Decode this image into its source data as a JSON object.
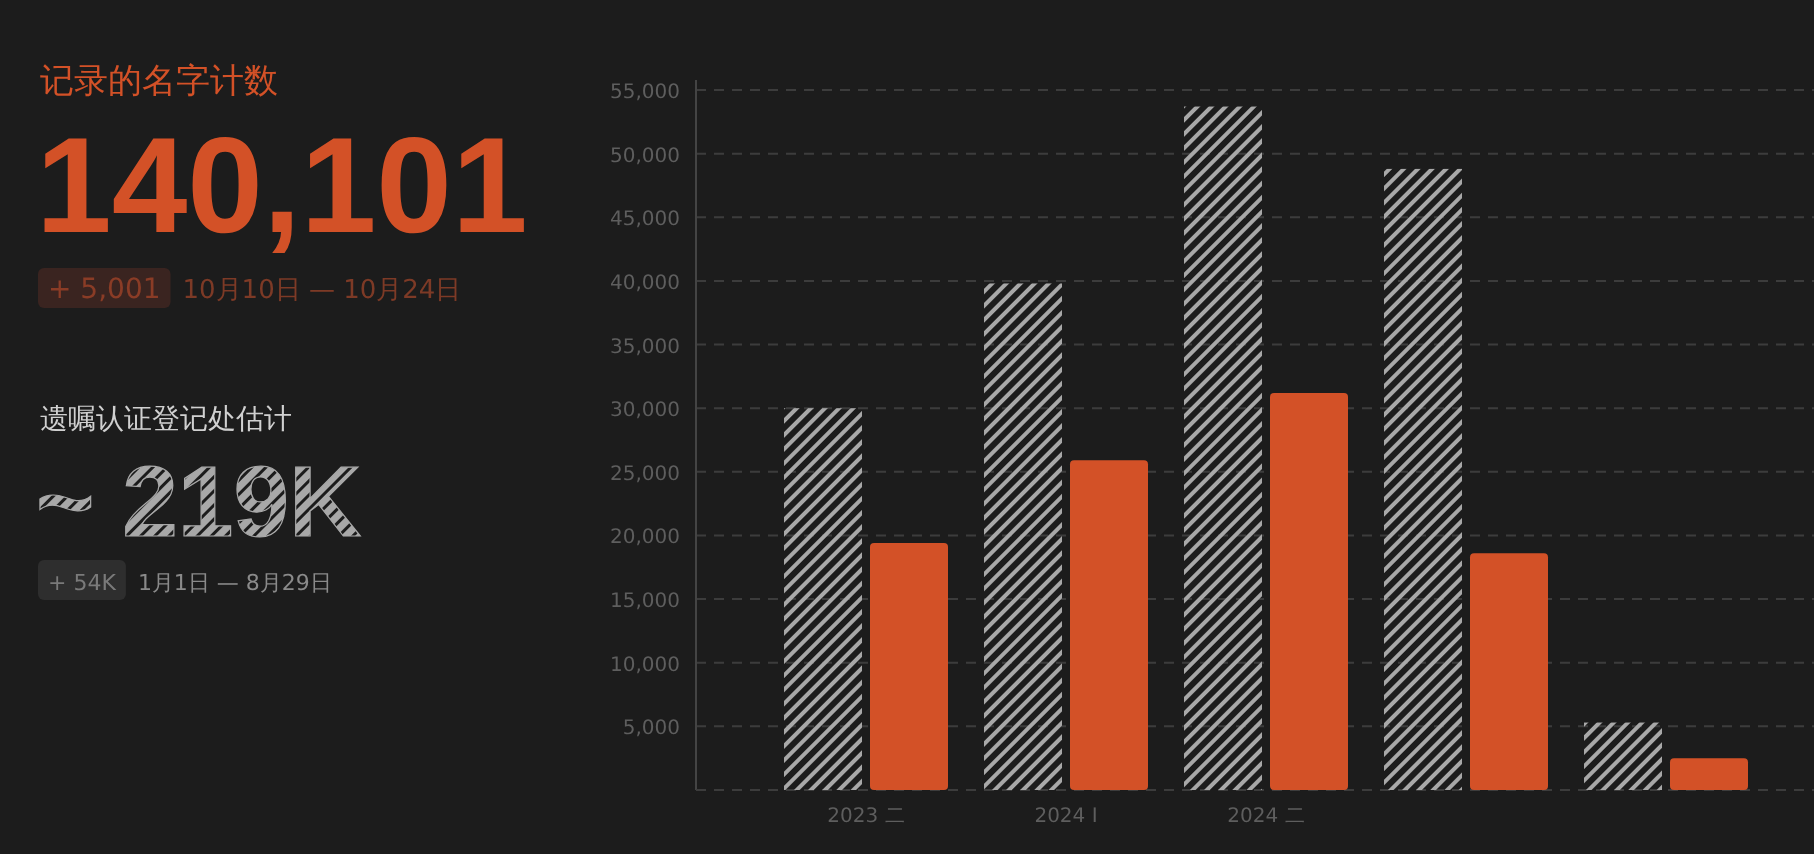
{
  "chart_data": [
    {
      "type": "other",
      "title": "记录的名字计数",
      "color": "#d35127",
      "annotations": [
        "140,101",
        "+ 5,001",
        "10月10日 — 10月24日"
      ]
    },
    {
      "type": "other",
      "title": "遗嘱认证登记处估计",
      "color": "#a8a8a8",
      "annotations": [
        "~ 219K",
        "+ 54K",
        "1月1日 — 8月29日"
      ]
    },
    {
      "type": "bar",
      "categories": [
        "2023 二",
        "2024 I",
        "2024 二",
        null,
        null
      ],
      "series": [
        {
          "color": "#a8a8a8",
          "values": [
            30000,
            39800,
            53700,
            48800,
            5300
          ]
        },
        {
          "color": "#d35127",
          "values": [
            19400,
            25900,
            31200,
            18600,
            2500
          ]
        }
      ],
      "ylim": [
        0,
        55000
      ],
      "yticks": [
        {
          "value": 5000,
          "label": "5,000"
        },
        {
          "value": 10000,
          "label": "10,000"
        },
        {
          "value": 15000,
          "label": "15,000"
        },
        {
          "value": 20000,
          "label": "20,000"
        },
        {
          "value": 25000,
          "label": "25,000"
        },
        {
          "value": 30000,
          "label": "30,000"
        },
        {
          "value": 35000,
          "label": "35,000"
        },
        {
          "value": 40000,
          "label": "40,000"
        },
        {
          "value": 45000,
          "label": "45,000"
        },
        {
          "value": 50000,
          "label": "50,000"
        },
        {
          "value": 55000,
          "label": "55,000"
        }
      ],
      "grid": "y"
    }
  ]
}
